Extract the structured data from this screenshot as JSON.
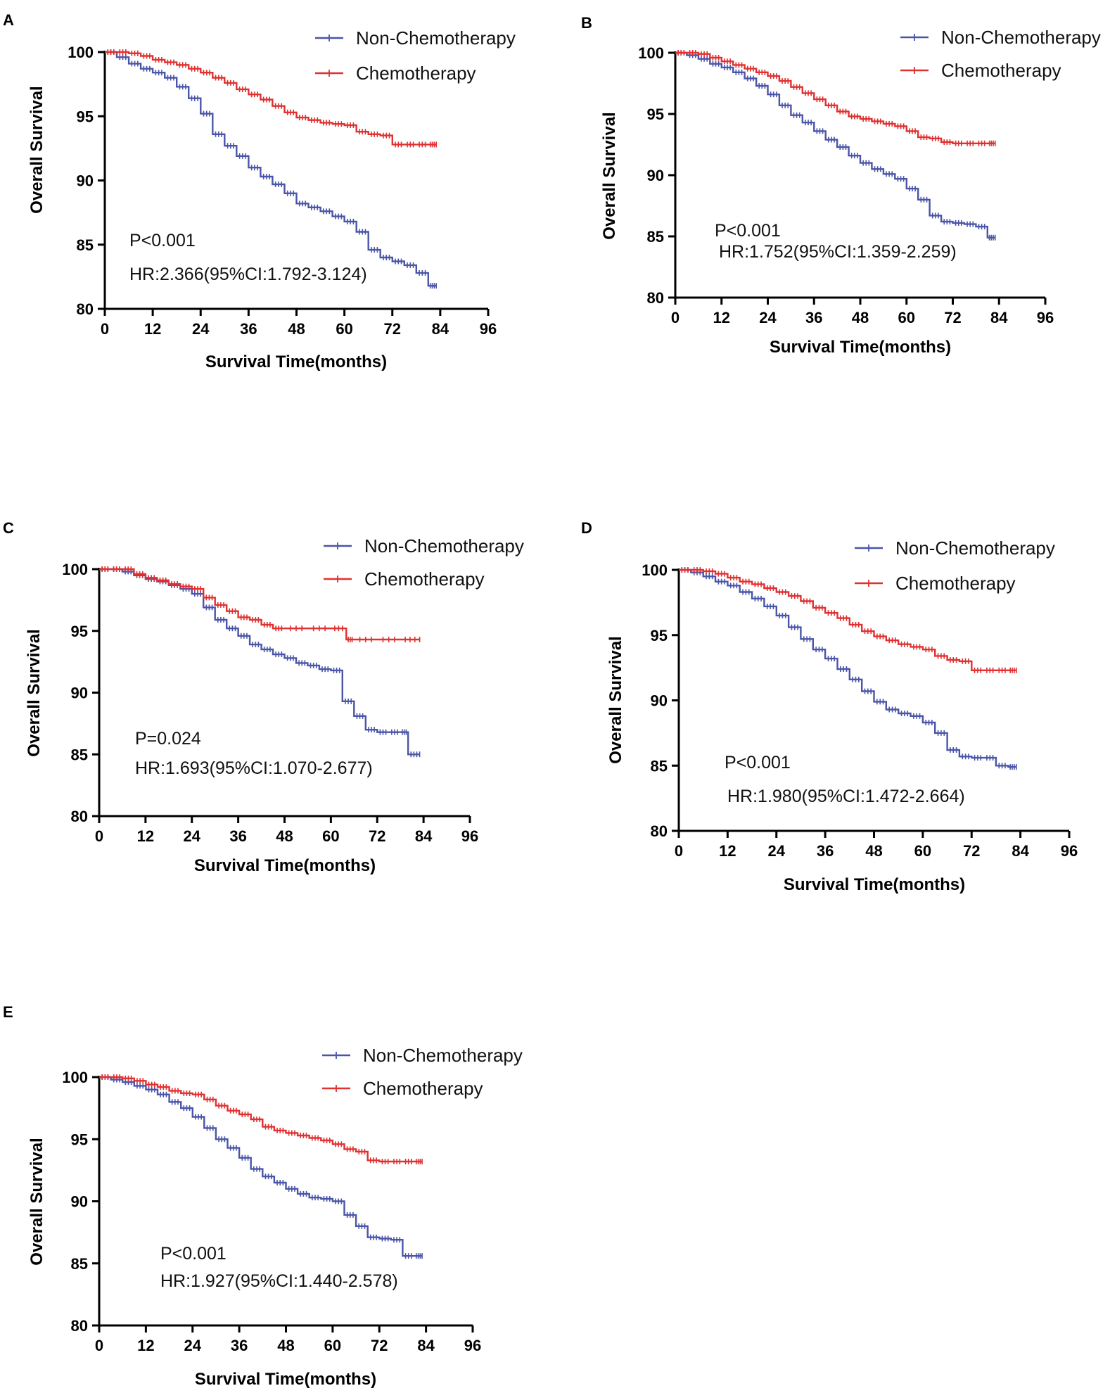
{
  "chart_data": [
    {
      "panel": "A",
      "type": "line",
      "xlabel": "Survival Time(months)",
      "ylabel": "Overall Survival",
      "xticks": [
        0,
        12,
        24,
        36,
        48,
        60,
        72,
        84,
        96
      ],
      "yticks": [
        80,
        85,
        90,
        95,
        100
      ],
      "xlim": [
        0,
        96
      ],
      "ylim": [
        80,
        100
      ],
      "annotations": [
        "P<0.001",
        "HR:2.366(95%CI:1.792-3.124)"
      ],
      "series": [
        {
          "name": "Non-Chemotherapy",
          "color": "#4a55a8",
          "x": [
            0,
            3,
            6,
            9,
            12,
            15,
            18,
            21,
            24,
            27,
            30,
            33,
            36,
            39,
            42,
            45,
            48,
            51,
            54,
            57,
            60,
            63,
            66,
            69,
            72,
            75,
            78,
            81,
            83
          ],
          "y": [
            100,
            99.6,
            99.1,
            98.7,
            98.4,
            98.0,
            97.3,
            96.4,
            95.2,
            93.6,
            92.7,
            91.9,
            91.0,
            90.3,
            89.7,
            89.0,
            88.2,
            87.9,
            87.6,
            87.2,
            86.8,
            86.0,
            84.6,
            84.0,
            83.7,
            83.4,
            82.8,
            81.8,
            81.8
          ]
        },
        {
          "name": "Chemotherapy",
          "color": "#e03030",
          "x": [
            0,
            3,
            6,
            9,
            12,
            15,
            18,
            21,
            24,
            27,
            30,
            33,
            36,
            39,
            42,
            45,
            48,
            51,
            54,
            57,
            60,
            63,
            66,
            69,
            72,
            75,
            78,
            81,
            83
          ],
          "y": [
            100,
            100,
            99.9,
            99.7,
            99.4,
            99.2,
            99.0,
            98.7,
            98.4,
            98.0,
            97.6,
            97.1,
            96.7,
            96.3,
            95.8,
            95.3,
            94.9,
            94.7,
            94.5,
            94.4,
            94.3,
            93.8,
            93.6,
            93.5,
            92.8,
            92.8,
            92.8,
            92.8,
            92.8
          ]
        }
      ]
    },
    {
      "panel": "B",
      "type": "line",
      "xlabel": "Survival Time(months)",
      "ylabel": "Overall Survival",
      "xticks": [
        0,
        12,
        24,
        36,
        48,
        60,
        72,
        84,
        96
      ],
      "yticks": [
        80,
        85,
        90,
        95,
        100
      ],
      "xlim": [
        0,
        96
      ],
      "ylim": [
        80,
        100
      ],
      "annotations": [
        "P<0.001",
        "HR:1.752(95%CI:1.359-2.259)"
      ],
      "series": [
        {
          "name": "Non-Chemotherapy",
          "color": "#4a55a8",
          "x": [
            0,
            3,
            6,
            9,
            12,
            15,
            18,
            21,
            24,
            27,
            30,
            33,
            36,
            39,
            42,
            45,
            48,
            51,
            54,
            57,
            60,
            63,
            66,
            69,
            72,
            75,
            78,
            81,
            83
          ],
          "y": [
            100,
            99.8,
            99.5,
            99.1,
            98.8,
            98.4,
            97.9,
            97.3,
            96.6,
            95.7,
            94.9,
            94.3,
            93.6,
            92.9,
            92.3,
            91.6,
            91.0,
            90.5,
            90.1,
            89.7,
            88.9,
            88.0,
            86.7,
            86.2,
            86.1,
            86.0,
            85.8,
            84.9,
            84.9
          ]
        },
        {
          "name": "Chemotherapy",
          "color": "#e03030",
          "x": [
            0,
            3,
            6,
            9,
            12,
            15,
            18,
            21,
            24,
            27,
            30,
            33,
            36,
            39,
            42,
            45,
            48,
            51,
            54,
            57,
            60,
            63,
            66,
            69,
            72,
            75,
            78,
            81,
            83
          ],
          "y": [
            100,
            100,
            99.9,
            99.6,
            99.3,
            99.0,
            98.7,
            98.4,
            98.1,
            97.7,
            97.2,
            96.7,
            96.2,
            95.7,
            95.2,
            94.8,
            94.6,
            94.4,
            94.2,
            94.0,
            93.6,
            93.1,
            93.0,
            92.7,
            92.6,
            92.6,
            92.6,
            92.6,
            92.6
          ]
        }
      ]
    },
    {
      "panel": "C",
      "type": "line",
      "xlabel": "Survival Time(months)",
      "ylabel": "Overall Survival",
      "xticks": [
        0,
        12,
        24,
        36,
        48,
        60,
        72,
        84,
        96
      ],
      "yticks": [
        80,
        85,
        90,
        95,
        100
      ],
      "xlim": [
        0,
        96
      ],
      "ylim": [
        80,
        100
      ],
      "annotations": [
        "P=0.024",
        "HR:1.693(95%CI:1.070-2.677)"
      ],
      "series": [
        {
          "name": "Non-Chemotherapy",
          "color": "#4a55a8",
          "x": [
            0,
            3,
            6,
            9,
            12,
            15,
            18,
            21,
            24,
            27,
            30,
            33,
            36,
            39,
            42,
            45,
            48,
            51,
            54,
            57,
            60,
            63,
            66,
            69,
            72,
            75,
            78,
            80,
            83
          ],
          "y": [
            100,
            100,
            99.8,
            99.5,
            99.2,
            99.0,
            98.7,
            98.4,
            98.0,
            96.9,
            95.9,
            95.2,
            94.6,
            93.9,
            93.5,
            93.1,
            92.8,
            92.4,
            92.2,
            91.9,
            91.8,
            89.3,
            88.1,
            87.0,
            86.8,
            86.8,
            86.8,
            85.0,
            85.0
          ]
        },
        {
          "name": "Chemotherapy",
          "color": "#e03030",
          "x": [
            0,
            3,
            6,
            9,
            12,
            15,
            18,
            21,
            24,
            27,
            30,
            33,
            36,
            39,
            42,
            45,
            48,
            54,
            60,
            64,
            66,
            72,
            78,
            83
          ],
          "y": [
            100,
            100,
            100,
            99.6,
            99.3,
            99.1,
            98.8,
            98.6,
            98.4,
            97.7,
            97.1,
            96.6,
            96.1,
            95.9,
            95.5,
            95.2,
            95.2,
            95.2,
            95.2,
            94.3,
            94.3,
            94.3,
            94.3,
            94.3
          ]
        }
      ]
    },
    {
      "panel": "D",
      "type": "line",
      "xlabel": "Survival Time(months)",
      "ylabel": "Overall Survival",
      "xticks": [
        0,
        12,
        24,
        36,
        48,
        60,
        72,
        84,
        96
      ],
      "yticks": [
        80,
        85,
        90,
        95,
        100
      ],
      "xlim": [
        0,
        96
      ],
      "ylim": [
        80,
        100
      ],
      "annotations": [
        "P<0.001",
        "HR:1.980(95%CI:1.472-2.664)"
      ],
      "series": [
        {
          "name": "Non-Chemotherapy",
          "color": "#4a55a8",
          "x": [
            0,
            3,
            6,
            9,
            12,
            15,
            18,
            21,
            24,
            27,
            30,
            33,
            36,
            39,
            42,
            45,
            48,
            51,
            54,
            57,
            60,
            63,
            66,
            69,
            72,
            75,
            78,
            81,
            83
          ],
          "y": [
            100,
            99.8,
            99.5,
            99.1,
            98.8,
            98.3,
            97.8,
            97.2,
            96.5,
            95.6,
            94.7,
            93.9,
            93.2,
            92.4,
            91.6,
            90.7,
            89.9,
            89.3,
            89.0,
            88.8,
            88.3,
            87.5,
            86.2,
            85.7,
            85.6,
            85.6,
            85.0,
            84.9,
            84.9
          ]
        },
        {
          "name": "Chemotherapy",
          "color": "#e03030",
          "x": [
            0,
            3,
            6,
            9,
            12,
            15,
            18,
            21,
            24,
            27,
            30,
            33,
            36,
            39,
            42,
            45,
            48,
            51,
            54,
            57,
            60,
            63,
            66,
            69,
            72,
            75,
            78,
            81,
            83
          ],
          "y": [
            100,
            100,
            99.9,
            99.7,
            99.4,
            99.1,
            98.9,
            98.6,
            98.3,
            98.0,
            97.6,
            97.1,
            96.7,
            96.3,
            95.8,
            95.3,
            94.9,
            94.6,
            94.3,
            94.1,
            93.9,
            93.4,
            93.1,
            93.0,
            92.3,
            92.3,
            92.3,
            92.3,
            92.3
          ]
        }
      ]
    },
    {
      "panel": "E",
      "type": "line",
      "xlabel": "Survival Time(months)",
      "ylabel": "Overall Survival",
      "xticks": [
        0,
        12,
        24,
        36,
        48,
        60,
        72,
        84,
        96
      ],
      "yticks": [
        80,
        85,
        90,
        95,
        100
      ],
      "xlim": [
        0,
        96
      ],
      "ylim": [
        80,
        100
      ],
      "annotations": [
        "P<0.001",
        "HR:1.927(95%CI:1.440-2.578)"
      ],
      "series": [
        {
          "name": "Non-Chemotherapy",
          "color": "#4a55a8",
          "x": [
            0,
            3,
            6,
            9,
            12,
            15,
            18,
            21,
            24,
            27,
            30,
            33,
            36,
            39,
            42,
            45,
            48,
            51,
            54,
            57,
            60,
            63,
            66,
            69,
            72,
            75,
            78,
            81,
            83
          ],
          "y": [
            100,
            99.8,
            99.6,
            99.3,
            99.0,
            98.6,
            98.0,
            97.5,
            96.8,
            95.9,
            95.0,
            94.3,
            93.5,
            92.6,
            92.0,
            91.5,
            91.0,
            90.6,
            90.3,
            90.2,
            90.0,
            88.9,
            88.0,
            87.1,
            87.0,
            86.9,
            85.6,
            85.6,
            85.6
          ]
        },
        {
          "name": "Chemotherapy",
          "color": "#e03030",
          "x": [
            0,
            3,
            6,
            9,
            12,
            15,
            18,
            21,
            24,
            27,
            30,
            33,
            36,
            39,
            42,
            45,
            48,
            51,
            54,
            57,
            60,
            63,
            66,
            69,
            72,
            75,
            78,
            81,
            83
          ],
          "y": [
            100,
            100,
            99.9,
            99.7,
            99.4,
            99.2,
            98.9,
            98.7,
            98.6,
            98.2,
            97.7,
            97.3,
            97.0,
            96.6,
            96.0,
            95.7,
            95.5,
            95.3,
            95.1,
            94.9,
            94.6,
            94.2,
            94.0,
            93.3,
            93.2,
            93.2,
            93.2,
            93.2,
            93.2
          ]
        }
      ]
    }
  ]
}
